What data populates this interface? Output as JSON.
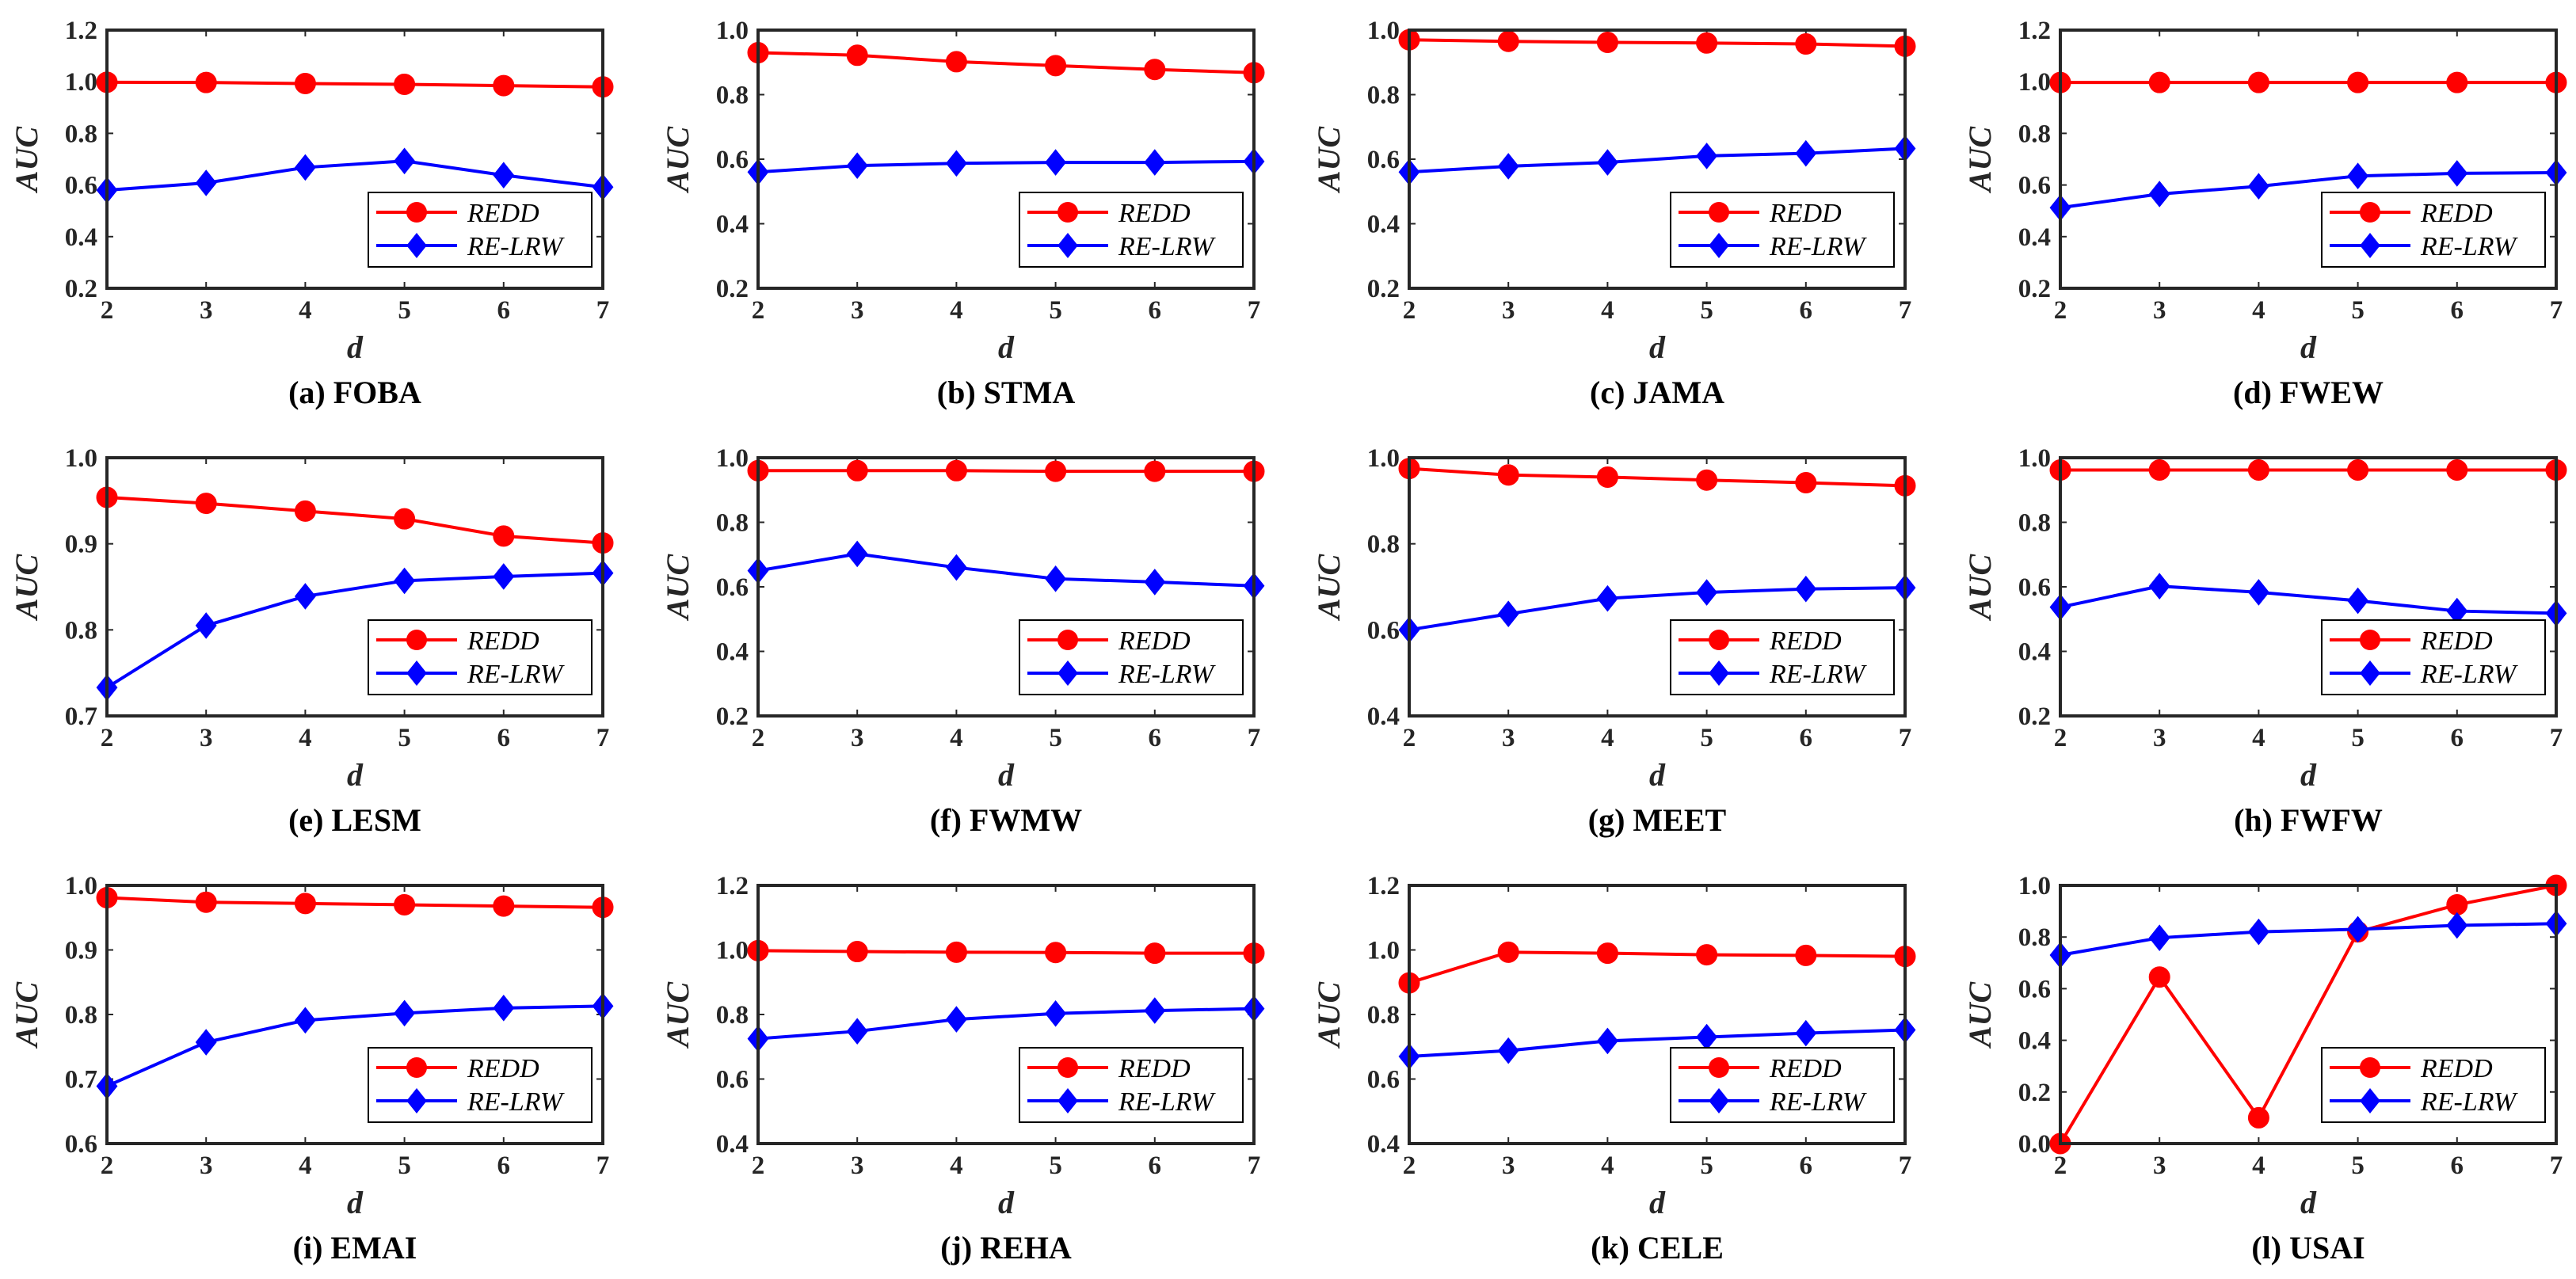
{
  "figure": {
    "series_names": [
      "REDD",
      "RE-LRW"
    ],
    "colors": {
      "REDD": "#ff0000",
      "RE-LRW": "#0000ff",
      "axis": "#262626",
      "background": "#ffffff"
    }
  },
  "chart_data": [
    {
      "type": "line",
      "caption": "(a) FOBA",
      "xlabel": "d",
      "ylabel": "AUC",
      "x": [
        2,
        3,
        4,
        5,
        6,
        7
      ],
      "xlim": [
        2,
        7
      ],
      "ylim": [
        0.2,
        1.2
      ],
      "yticks": [
        0.2,
        0.4,
        0.6,
        0.8,
        1.0,
        1.2
      ],
      "ytick_labels": [
        "0.2",
        "0.4",
        "0.6",
        "0.8",
        "1.0",
        "1.2"
      ],
      "xtick_labels": [
        "2",
        "3",
        "4",
        "5",
        "6",
        "7"
      ],
      "series": [
        {
          "name": "REDD",
          "values": [
            0.998,
            0.997,
            0.993,
            0.99,
            0.985,
            0.98
          ]
        },
        {
          "name": "RE-LRW",
          "values": [
            0.58,
            0.608,
            0.668,
            0.693,
            0.638,
            0.592
          ]
        }
      ]
    },
    {
      "type": "line",
      "caption": "(b) STMA",
      "xlabel": "d",
      "ylabel": "AUC",
      "x": [
        2,
        3,
        4,
        5,
        6,
        7
      ],
      "xlim": [
        2,
        7
      ],
      "ylim": [
        0.2,
        1.0
      ],
      "yticks": [
        0.2,
        0.4,
        0.6,
        0.8,
        1.0
      ],
      "ytick_labels": [
        "0.2",
        "0.4",
        "0.6",
        "0.8",
        "1.0"
      ],
      "xtick_labels": [
        "2",
        "3",
        "4",
        "5",
        "6",
        "7"
      ],
      "series": [
        {
          "name": "REDD",
          "values": [
            0.93,
            0.922,
            0.902,
            0.89,
            0.878,
            0.868
          ]
        },
        {
          "name": "RE-LRW",
          "values": [
            0.56,
            0.58,
            0.587,
            0.59,
            0.59,
            0.593
          ]
        }
      ]
    },
    {
      "type": "line",
      "caption": "(c) JAMA",
      "xlabel": "d",
      "ylabel": "AUC",
      "x": [
        2,
        3,
        4,
        5,
        6,
        7
      ],
      "xlim": [
        2,
        7
      ],
      "ylim": [
        0.2,
        1.0
      ],
      "yticks": [
        0.2,
        0.4,
        0.6,
        0.8,
        1.0
      ],
      "ytick_labels": [
        "0.2",
        "0.4",
        "0.6",
        "0.8",
        "1.0"
      ],
      "xtick_labels": [
        "2",
        "3",
        "4",
        "5",
        "6",
        "7"
      ],
      "series": [
        {
          "name": "REDD",
          "values": [
            0.97,
            0.965,
            0.962,
            0.96,
            0.957,
            0.95
          ]
        },
        {
          "name": "RE-LRW",
          "values": [
            0.56,
            0.578,
            0.59,
            0.61,
            0.618,
            0.633
          ]
        }
      ]
    },
    {
      "type": "line",
      "caption": "(d) FWEW",
      "xlabel": "d",
      "ylabel": "AUC",
      "x": [
        2,
        3,
        4,
        5,
        6,
        7
      ],
      "xlim": [
        2,
        7
      ],
      "ylim": [
        0.2,
        1.2
      ],
      "yticks": [
        0.2,
        0.4,
        0.6,
        0.8,
        1.0,
        1.2
      ],
      "ytick_labels": [
        "0.2",
        "0.4",
        "0.6",
        "0.8",
        "1.0",
        "1.2"
      ],
      "xtick_labels": [
        "2",
        "3",
        "4",
        "5",
        "6",
        "7"
      ],
      "series": [
        {
          "name": "REDD",
          "values": [
            0.997,
            0.997,
            0.997,
            0.997,
            0.997,
            0.997
          ]
        },
        {
          "name": "RE-LRW",
          "values": [
            0.512,
            0.565,
            0.595,
            0.635,
            0.645,
            0.648
          ]
        }
      ]
    },
    {
      "type": "line",
      "caption": "(e) LESM",
      "xlabel": "d",
      "ylabel": "AUC",
      "x": [
        2,
        3,
        4,
        5,
        6,
        7
      ],
      "xlim": [
        2,
        7
      ],
      "ylim": [
        0.7,
        1.0
      ],
      "yticks": [
        0.7,
        0.8,
        0.9,
        1.0
      ],
      "ytick_labels": [
        "0.7",
        "0.8",
        "0.9",
        "1.0"
      ],
      "xtick_labels": [
        "2",
        "3",
        "4",
        "5",
        "6",
        "7"
      ],
      "series": [
        {
          "name": "REDD",
          "values": [
            0.954,
            0.947,
            0.938,
            0.929,
            0.909,
            0.901
          ]
        },
        {
          "name": "RE-LRW",
          "values": [
            0.733,
            0.805,
            0.839,
            0.857,
            0.862,
            0.866
          ]
        }
      ]
    },
    {
      "type": "line",
      "caption": "(f) FWMW",
      "xlabel": "d",
      "ylabel": "AUC",
      "x": [
        2,
        3,
        4,
        5,
        6,
        7
      ],
      "xlim": [
        2,
        7
      ],
      "ylim": [
        0.2,
        1.0
      ],
      "yticks": [
        0.2,
        0.4,
        0.6,
        0.8,
        1.0
      ],
      "ytick_labels": [
        "0.2",
        "0.4",
        "0.6",
        "0.8",
        "1.0"
      ],
      "xtick_labels": [
        "2",
        "3",
        "4",
        "5",
        "6",
        "7"
      ],
      "series": [
        {
          "name": "REDD",
          "values": [
            0.96,
            0.96,
            0.96,
            0.958,
            0.958,
            0.958
          ]
        },
        {
          "name": "RE-LRW",
          "values": [
            0.65,
            0.702,
            0.66,
            0.625,
            0.615,
            0.603
          ]
        }
      ]
    },
    {
      "type": "line",
      "caption": "(g) MEET",
      "xlabel": "d",
      "ylabel": "AUC",
      "x": [
        2,
        3,
        4,
        5,
        6,
        7
      ],
      "xlim": [
        2,
        7
      ],
      "ylim": [
        0.4,
        1.0
      ],
      "yticks": [
        0.4,
        0.6,
        0.8,
        1.0
      ],
      "ytick_labels": [
        "0.4",
        "0.6",
        "0.8",
        "1.0"
      ],
      "xtick_labels": [
        "2",
        "3",
        "4",
        "5",
        "6",
        "7"
      ],
      "series": [
        {
          "name": "REDD",
          "values": [
            0.975,
            0.96,
            0.955,
            0.948,
            0.942,
            0.935
          ]
        },
        {
          "name": "RE-LRW",
          "values": [
            0.6,
            0.637,
            0.673,
            0.687,
            0.695,
            0.698
          ]
        }
      ]
    },
    {
      "type": "line",
      "caption": "(h) FWFW",
      "xlabel": "d",
      "ylabel": "AUC",
      "x": [
        2,
        3,
        4,
        5,
        6,
        7
      ],
      "xlim": [
        2,
        7
      ],
      "ylim": [
        0.2,
        1.0
      ],
      "yticks": [
        0.2,
        0.4,
        0.6,
        0.8,
        1.0
      ],
      "ytick_labels": [
        "0.2",
        "0.4",
        "0.6",
        "0.8",
        "1.0"
      ],
      "xtick_labels": [
        "2",
        "3",
        "4",
        "5",
        "6",
        "7"
      ],
      "series": [
        {
          "name": "REDD",
          "values": [
            0.962,
            0.962,
            0.962,
            0.962,
            0.962,
            0.962
          ]
        },
        {
          "name": "RE-LRW",
          "values": [
            0.537,
            0.602,
            0.583,
            0.557,
            0.525,
            0.518
          ]
        }
      ]
    },
    {
      "type": "line",
      "caption": "(i) EMAI",
      "xlabel": "d",
      "ylabel": "AUC",
      "x": [
        2,
        3,
        4,
        5,
        6,
        7
      ],
      "xlim": [
        2,
        7
      ],
      "ylim": [
        0.6,
        1.0
      ],
      "yticks": [
        0.6,
        0.7,
        0.8,
        0.9,
        1.0
      ],
      "ytick_labels": [
        "0.6",
        "0.7",
        "0.8",
        "0.9",
        "1.0"
      ],
      "xtick_labels": [
        "2",
        "3",
        "4",
        "5",
        "6",
        "7"
      ],
      "series": [
        {
          "name": "REDD",
          "values": [
            0.981,
            0.974,
            0.972,
            0.97,
            0.968,
            0.966
          ]
        },
        {
          "name": "RE-LRW",
          "values": [
            0.689,
            0.757,
            0.791,
            0.802,
            0.81,
            0.813
          ]
        }
      ]
    },
    {
      "type": "line",
      "caption": "(j) REHA",
      "xlabel": "d",
      "ylabel": "AUC",
      "x": [
        2,
        3,
        4,
        5,
        6,
        7
      ],
      "xlim": [
        2,
        7
      ],
      "ylim": [
        0.4,
        1.2
      ],
      "yticks": [
        0.4,
        0.6,
        0.8,
        1.0,
        1.2
      ],
      "ytick_labels": [
        "0.4",
        "0.6",
        "0.8",
        "1.0",
        "1.2"
      ],
      "xtick_labels": [
        "2",
        "3",
        "4",
        "5",
        "6",
        "7"
      ],
      "series": [
        {
          "name": "REDD",
          "values": [
            0.998,
            0.995,
            0.993,
            0.992,
            0.99,
            0.99
          ]
        },
        {
          "name": "RE-LRW",
          "values": [
            0.725,
            0.748,
            0.785,
            0.803,
            0.812,
            0.818
          ]
        }
      ]
    },
    {
      "type": "line",
      "caption": "(k) CELE",
      "xlabel": "d",
      "ylabel": "AUC",
      "x": [
        2,
        3,
        4,
        5,
        6,
        7
      ],
      "xlim": [
        2,
        7
      ],
      "ylim": [
        0.4,
        1.2
      ],
      "yticks": [
        0.4,
        0.6,
        0.8,
        1.0,
        1.2
      ],
      "ytick_labels": [
        "0.4",
        "0.6",
        "0.8",
        "1.0",
        "1.2"
      ],
      "xtick_labels": [
        "2",
        "3",
        "4",
        "5",
        "6",
        "7"
      ],
      "series": [
        {
          "name": "REDD",
          "values": [
            0.898,
            0.993,
            0.99,
            0.985,
            0.983,
            0.98
          ]
        },
        {
          "name": "RE-LRW",
          "values": [
            0.67,
            0.688,
            0.718,
            0.73,
            0.742,
            0.752
          ]
        }
      ]
    },
    {
      "type": "line",
      "caption": "(l) USAI",
      "xlabel": "d",
      "ylabel": "AUC",
      "x": [
        2,
        3,
        4,
        5,
        6,
        7
      ],
      "xlim": [
        2,
        7
      ],
      "ylim": [
        0.0,
        1.0
      ],
      "yticks": [
        0.0,
        0.2,
        0.4,
        0.6,
        0.8,
        1.0
      ],
      "ytick_labels": [
        "0.0",
        "0.2",
        "0.4",
        "0.6",
        "0.8",
        "1.0"
      ],
      "xtick_labels": [
        "2",
        "3",
        "4",
        "5",
        "6",
        "7"
      ],
      "series": [
        {
          "name": "REDD",
          "values": [
            0.0,
            0.645,
            0.1,
            0.82,
            0.925,
            1.0
          ]
        },
        {
          "name": "RE-LRW",
          "values": [
            0.73,
            0.797,
            0.82,
            0.83,
            0.845,
            0.852
          ]
        }
      ]
    }
  ]
}
